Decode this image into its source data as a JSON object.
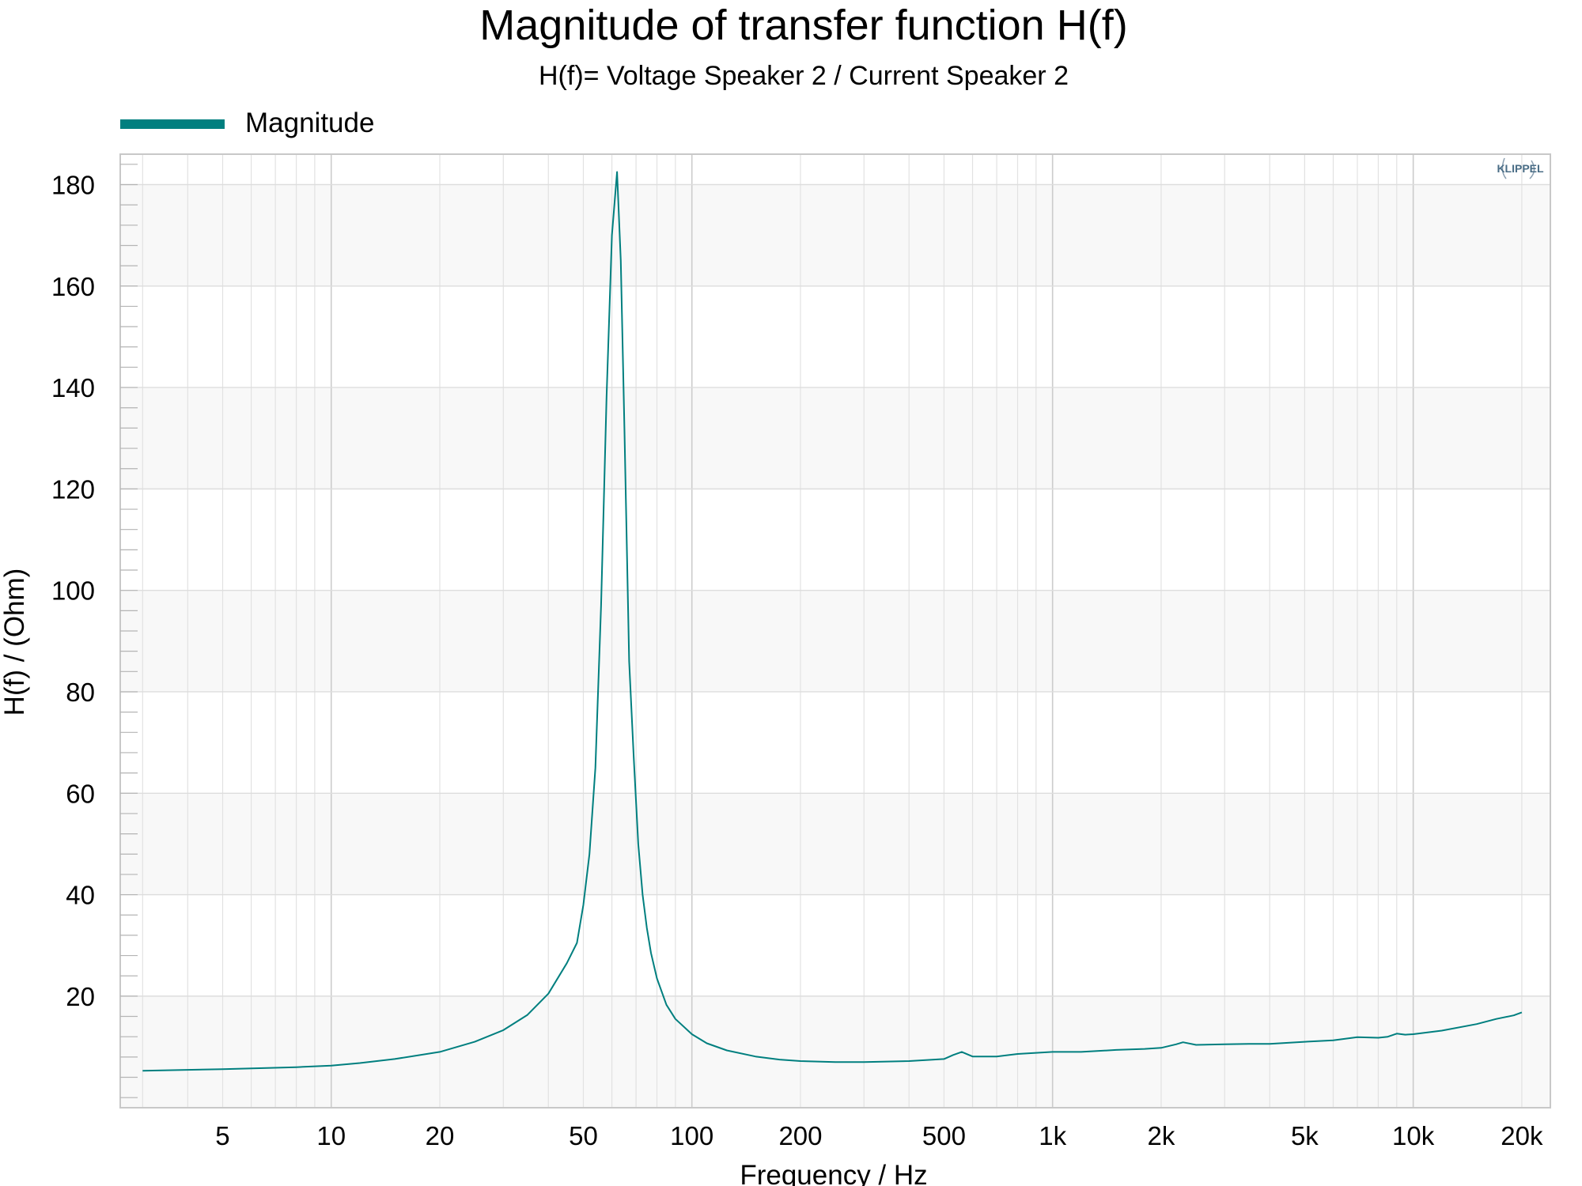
{
  "chart_data": {
    "type": "line",
    "title": "Magnitude of transfer function H(f)",
    "subtitle": "H(f)= Voltage Speaker 2 / Current Speaker 2",
    "xlabel": "Frequency / Hz",
    "ylabel": "H(f) / (Ohm)",
    "xscale": "log",
    "xlim": [
      2.6,
      24000
    ],
    "ylim": [
      -2,
      186
    ],
    "grid": true,
    "legend_position": "top-left",
    "logo": "KLIPPEL",
    "xticks": [
      {
        "v": 5,
        "label": "5"
      },
      {
        "v": 10,
        "label": "10"
      },
      {
        "v": 20,
        "label": "20"
      },
      {
        "v": 50,
        "label": "50"
      },
      {
        "v": 100,
        "label": "100"
      },
      {
        "v": 200,
        "label": "200"
      },
      {
        "v": 500,
        "label": "500"
      },
      {
        "v": 1000,
        "label": "1k"
      },
      {
        "v": 2000,
        "label": "2k"
      },
      {
        "v": 5000,
        "label": "5k"
      },
      {
        "v": 10000,
        "label": "10k"
      },
      {
        "v": 20000,
        "label": "20k"
      }
    ],
    "yticks": [
      {
        "v": 20,
        "label": "20"
      },
      {
        "v": 40,
        "label": "40"
      },
      {
        "v": 60,
        "label": "60"
      },
      {
        "v": 80,
        "label": "80"
      },
      {
        "v": 100,
        "label": "100"
      },
      {
        "v": 120,
        "label": "120"
      },
      {
        "v": 140,
        "label": "140"
      },
      {
        "v": 160,
        "label": "160"
      },
      {
        "v": 180,
        "label": "180"
      }
    ],
    "series": [
      {
        "name": "Magnitude",
        "color": "#007f7f",
        "x": [
          3,
          5,
          8,
          10,
          12,
          15,
          20,
          25,
          30,
          35,
          40,
          45,
          48,
          50,
          52,
          54,
          56,
          58,
          60,
          62,
          63.5,
          65,
          67,
          69,
          71,
          73,
          75,
          77,
          80,
          85,
          90,
          100,
          110,
          125,
          150,
          175,
          200,
          250,
          300,
          400,
          500,
          530,
          560,
          600,
          700,
          800,
          1000,
          1200,
          1500,
          1800,
          2000,
          2200,
          2300,
          2500,
          3000,
          3500,
          4000,
          5000,
          6000,
          7000,
          8000,
          8500,
          9000,
          9500,
          10000,
          12000,
          15000,
          17000,
          19000,
          20000
        ],
        "y": [
          5.3,
          5.6,
          6.0,
          6.3,
          6.8,
          7.6,
          9.0,
          11.0,
          13.3,
          16.3,
          20.5,
          26.5,
          30.5,
          38,
          48,
          65,
          97,
          138,
          170,
          182.5,
          165,
          132,
          86,
          67,
          50,
          40,
          33.5,
          28.5,
          23.5,
          18.3,
          15.5,
          12.5,
          10.7,
          9.3,
          8.1,
          7.5,
          7.2,
          7.0,
          7.0,
          7.2,
          7.6,
          8.4,
          9.0,
          8.1,
          8.1,
          8.6,
          9.0,
          9.0,
          9.4,
          9.6,
          9.8,
          10.5,
          10.9,
          10.4,
          10.5,
          10.6,
          10.6,
          11.0,
          11.3,
          11.9,
          11.8,
          12.0,
          12.6,
          12.4,
          12.5,
          13.2,
          14.5,
          15.5,
          16.2,
          16.8
        ]
      }
    ]
  }
}
